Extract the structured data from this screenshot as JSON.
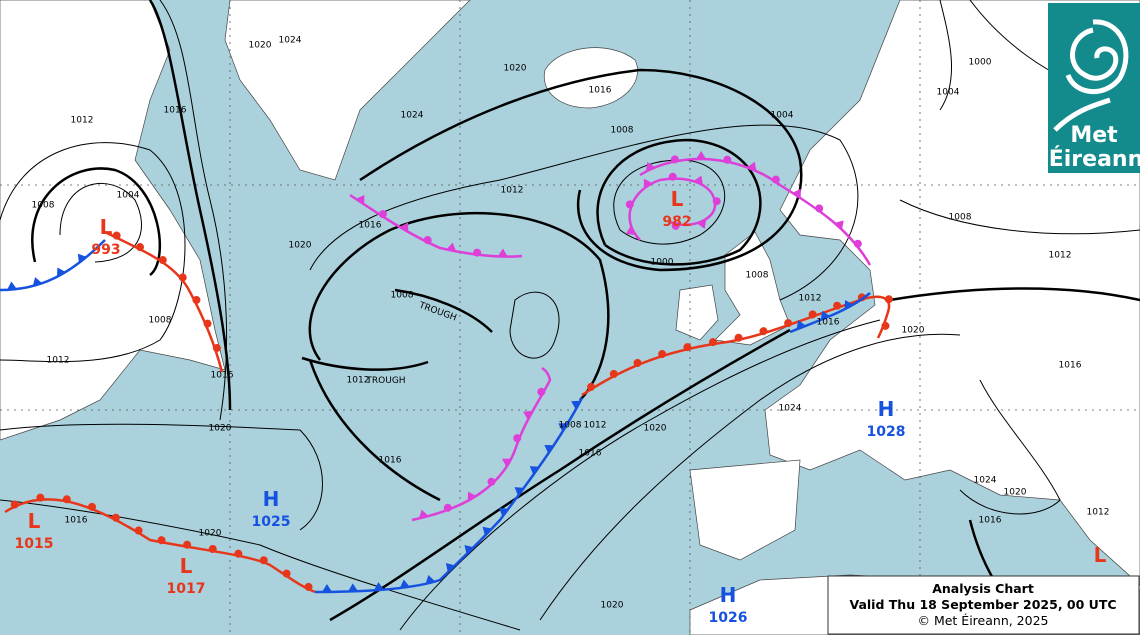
{
  "logo": {
    "line1": "Met",
    "line2": "Éireann"
  },
  "caption": {
    "title": "Analysis Chart",
    "valid": "Valid Thu 18 September 2025, 00 UTC",
    "copyright": "© Met Éireann, 2025"
  },
  "pressure_centres": [
    {
      "symbol": "L",
      "value": 993
    },
    {
      "symbol": "L",
      "value": 982
    },
    {
      "symbol": "L",
      "value": 1015
    },
    {
      "symbol": "L",
      "value": 1017
    },
    {
      "symbol": "H",
      "value": 1025
    },
    {
      "symbol": "H",
      "value": 1028
    },
    {
      "symbol": "H",
      "value": 1026
    },
    {
      "symbol": "L"
    }
  ],
  "troughs": [
    "TROUGH",
    "TROUGH"
  ],
  "isobar_labels": [
    "1020",
    "1024",
    "1020",
    "1016",
    "1024",
    "1008",
    "1004",
    "1012",
    "1016",
    "1020",
    "1016",
    "1012",
    "1008",
    "1004",
    "1008",
    "1012",
    "1016",
    "1020",
    "1008",
    "1012",
    "1016",
    "1016",
    "1020",
    "1008",
    "1012",
    "1016",
    "1020",
    "1000",
    "1008",
    "1012",
    "1016",
    "1020",
    "1024",
    "1008",
    "1012",
    "1016",
    "1004",
    "1000",
    "1024",
    "1020",
    "1016",
    "1012",
    "1020"
  ]
}
